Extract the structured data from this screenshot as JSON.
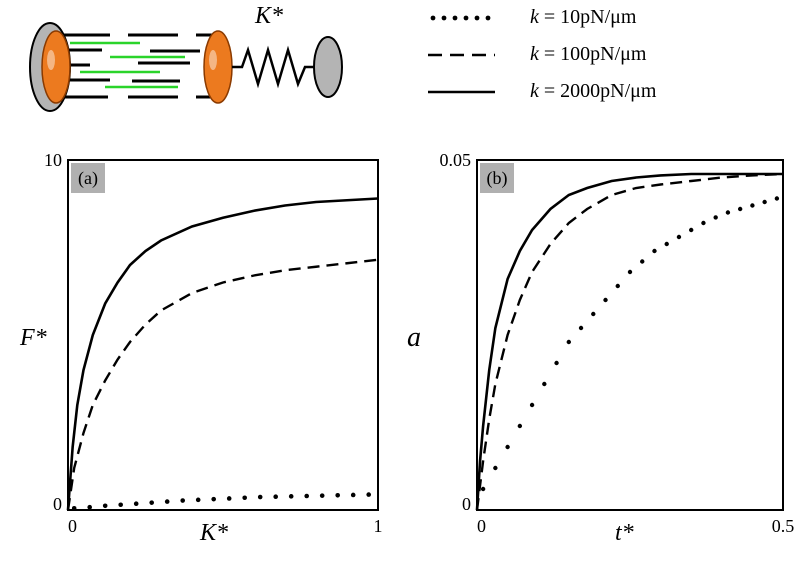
{
  "legend": {
    "items": [
      {
        "label": "k = 10pN/μm",
        "style": "dotted"
      },
      {
        "label": "k = 100pN/μm",
        "style": "dashed"
      },
      {
        "label": "k = 2000pN/μm",
        "style": "solid"
      }
    ],
    "fontsize": 20,
    "k_italic": "k"
  },
  "diagram": {
    "label_Kstar": "K*",
    "spring_color": "#000000",
    "pole_colors": {
      "outer": "#b4b4b4",
      "inner": "#ec7a1f"
    },
    "filament_colors": {
      "dark": "#000000",
      "green": "#2ad42a"
    }
  },
  "chart_a": {
    "panel_label": "(a)",
    "type": "line",
    "xlabel": "K*",
    "ylabel": "F*",
    "xlim": [
      0,
      1
    ],
    "ylim": [
      0,
      10
    ],
    "xtick_labels": [
      "0",
      "1"
    ],
    "ytick_labels": [
      "0",
      "10"
    ],
    "xtick_positions": [
      0,
      1
    ],
    "ytick_positions": [
      0,
      10
    ],
    "label_fontsize": 22,
    "tick_fontsize": 18,
    "axis_color": "#000000",
    "background_color": "#ffffff",
    "panel_bg": "#b0b0b0",
    "series": {
      "dotted": {
        "color": "#000000",
        "marker_radius": 2.3,
        "x": [
          0.02,
          0.07,
          0.12,
          0.17,
          0.22,
          0.27,
          0.32,
          0.37,
          0.42,
          0.47,
          0.52,
          0.57,
          0.62,
          0.67,
          0.72,
          0.77,
          0.82,
          0.87,
          0.92,
          0.97
        ],
        "y": [
          0.05,
          0.08,
          0.12,
          0.15,
          0.18,
          0.21,
          0.24,
          0.27,
          0.29,
          0.31,
          0.33,
          0.35,
          0.37,
          0.38,
          0.39,
          0.4,
          0.41,
          0.42,
          0.43,
          0.44
        ]
      },
      "dashed": {
        "color": "#000000",
        "line_width": 2.4,
        "dash": "12,7",
        "x": [
          0.0,
          0.02,
          0.05,
          0.08,
          0.12,
          0.16,
          0.2,
          0.25,
          0.3,
          0.4,
          0.5,
          0.6,
          0.7,
          0.8,
          0.9,
          1.0
        ],
        "y": [
          0.0,
          1.2,
          2.2,
          3.0,
          3.7,
          4.3,
          4.8,
          5.3,
          5.7,
          6.2,
          6.5,
          6.7,
          6.85,
          6.95,
          7.05,
          7.15
        ]
      },
      "solid": {
        "color": "#000000",
        "line_width": 2.6,
        "x": [
          0.0,
          0.015,
          0.03,
          0.05,
          0.08,
          0.12,
          0.16,
          0.2,
          0.25,
          0.3,
          0.4,
          0.5,
          0.6,
          0.7,
          0.8,
          0.9,
          1.0
        ],
        "y": [
          0.0,
          1.8,
          3.0,
          4.0,
          5.0,
          5.9,
          6.5,
          7.0,
          7.4,
          7.7,
          8.1,
          8.35,
          8.55,
          8.7,
          8.8,
          8.85,
          8.9
        ]
      }
    }
  },
  "chart_b": {
    "panel_label": "(b)",
    "type": "line",
    "xlabel": "t*",
    "ylabel": "a",
    "xlim": [
      0,
      0.5
    ],
    "ylim": [
      0,
      0.05
    ],
    "xtick_labels": [
      "0",
      "0.5"
    ],
    "ytick_labels": [
      "0",
      "0.05"
    ],
    "xtick_positions": [
      0,
      0.5
    ],
    "ytick_positions": [
      0,
      0.05
    ],
    "label_fontsize": 22,
    "tick_fontsize": 18,
    "axis_color": "#000000",
    "background_color": "#ffffff",
    "panel_bg": "#b0b0b0",
    "series": {
      "dotted": {
        "color": "#000000",
        "marker_radius": 2.2,
        "x": [
          0.01,
          0.03,
          0.05,
          0.07,
          0.09,
          0.11,
          0.13,
          0.15,
          0.17,
          0.19,
          0.21,
          0.23,
          0.25,
          0.27,
          0.29,
          0.31,
          0.33,
          0.35,
          0.37,
          0.39,
          0.41,
          0.43,
          0.45,
          0.47,
          0.49
        ],
        "y": [
          0.003,
          0.006,
          0.009,
          0.012,
          0.015,
          0.018,
          0.021,
          0.024,
          0.026,
          0.028,
          0.03,
          0.032,
          0.034,
          0.0355,
          0.037,
          0.038,
          0.039,
          0.04,
          0.041,
          0.0418,
          0.0425,
          0.043,
          0.0435,
          0.044,
          0.0445
        ]
      },
      "dashed": {
        "color": "#000000",
        "line_width": 2.4,
        "dash": "12,7",
        "x": [
          0.0,
          0.01,
          0.02,
          0.03,
          0.05,
          0.07,
          0.09,
          0.12,
          0.15,
          0.18,
          0.22,
          0.26,
          0.3,
          0.35,
          0.4,
          0.45,
          0.5
        ],
        "y": [
          0.0,
          0.007,
          0.013,
          0.018,
          0.025,
          0.03,
          0.034,
          0.038,
          0.041,
          0.043,
          0.045,
          0.046,
          0.0465,
          0.047,
          0.0475,
          0.0478,
          0.048
        ]
      },
      "solid": {
        "color": "#000000",
        "line_width": 2.6,
        "x": [
          0.0,
          0.005,
          0.01,
          0.02,
          0.03,
          0.05,
          0.07,
          0.09,
          0.12,
          0.15,
          0.18,
          0.22,
          0.26,
          0.3,
          0.35,
          0.4,
          0.45,
          0.5
        ],
        "y": [
          0.0,
          0.007,
          0.012,
          0.02,
          0.026,
          0.033,
          0.037,
          0.04,
          0.043,
          0.045,
          0.046,
          0.047,
          0.0475,
          0.0478,
          0.048,
          0.048,
          0.048,
          0.048
        ]
      }
    }
  }
}
